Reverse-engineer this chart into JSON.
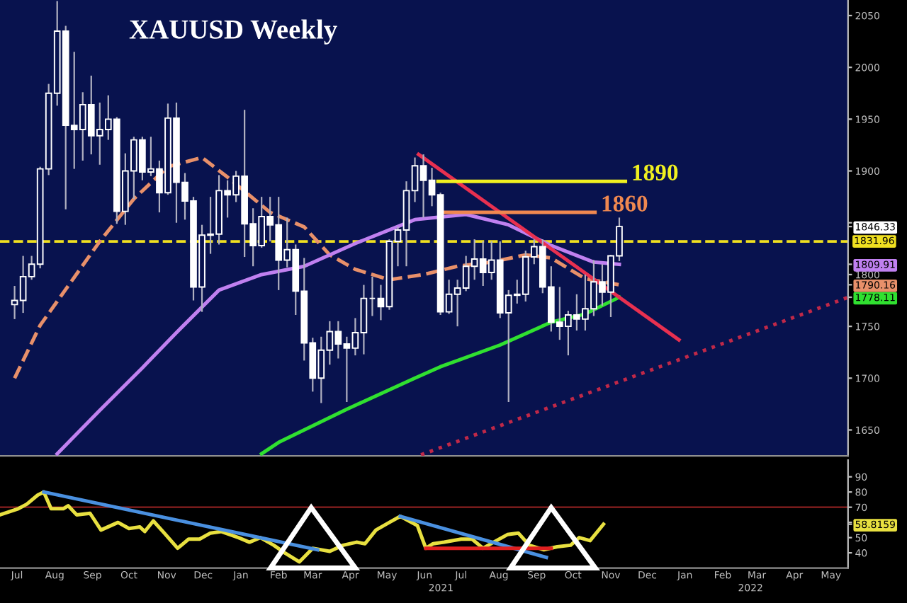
{
  "chart_data": [
    {
      "type": "candlestick",
      "title": "XAUUSD Weekly",
      "color": "#ffffff",
      "tick_labels": "y",
      "x": [
        "2020-06-29",
        "2020-07-06",
        "2020-07-13",
        "2020-07-20",
        "2020-07-27",
        "2020-08-03",
        "2020-08-10",
        "2020-08-17",
        "2020-08-24",
        "2020-08-31",
        "2020-09-07",
        "2020-09-14",
        "2020-09-21",
        "2020-09-28",
        "2020-10-05",
        "2020-10-12",
        "2020-10-19",
        "2020-10-26",
        "2020-11-02",
        "2020-11-09",
        "2020-11-16",
        "2020-11-23",
        "2020-11-30",
        "2020-12-07",
        "2020-12-14",
        "2020-12-21",
        "2020-12-28",
        "2021-01-04",
        "2021-01-11",
        "2021-01-18",
        "2021-01-25",
        "2021-02-01",
        "2021-02-08",
        "2021-02-15",
        "2021-02-22",
        "2021-03-01",
        "2021-03-08",
        "2021-03-15",
        "2021-03-22",
        "2021-03-29",
        "2021-04-05",
        "2021-04-12",
        "2021-04-19",
        "2021-04-26",
        "2021-05-03",
        "2021-05-10",
        "2021-05-17",
        "2021-05-24",
        "2021-05-31",
        "2021-06-07",
        "2021-06-14",
        "2021-06-21",
        "2021-06-28",
        "2021-07-05",
        "2021-07-12",
        "2021-07-19",
        "2021-07-26",
        "2021-08-02",
        "2021-08-09",
        "2021-08-16",
        "2021-08-23",
        "2021-08-30",
        "2021-09-06",
        "2021-09-13",
        "2021-09-20",
        "2021-09-27",
        "2021-10-04",
        "2021-10-11",
        "2021-10-18",
        "2021-10-25",
        "2021-11-01",
        "2021-11-08"
      ],
      "ohlc": [
        [
          1771,
          1789,
          1757,
          1775
        ],
        [
          1775,
          1818,
          1763,
          1798
        ],
        [
          1798,
          1818,
          1795,
          1810
        ],
        [
          1810,
          1904,
          1806,
          1902
        ],
        [
          1902,
          1984,
          1896,
          1975
        ],
        [
          1975,
          2064,
          1963,
          2035
        ],
        [
          2035,
          2040,
          1863,
          1944
        ],
        [
          1944,
          2015,
          1902,
          1940
        ],
        [
          1940,
          1976,
          1910,
          1964
        ],
        [
          1964,
          1992,
          1916,
          1934
        ],
        [
          1934,
          1966,
          1906,
          1940
        ],
        [
          1940,
          1973,
          1930,
          1950
        ],
        [
          1950,
          1952,
          1849,
          1861
        ],
        [
          1861,
          1917,
          1848,
          1900
        ],
        [
          1900,
          1933,
          1873,
          1930
        ],
        [
          1930,
          1933,
          1891,
          1899
        ],
        [
          1899,
          1933,
          1895,
          1902
        ],
        [
          1902,
          1910,
          1860,
          1879
        ],
        [
          1879,
          1965,
          1877,
          1951
        ],
        [
          1951,
          1966,
          1850,
          1889
        ],
        [
          1889,
          1898,
          1853,
          1871
        ],
        [
          1871,
          1875,
          1775,
          1788
        ],
        [
          1788,
          1848,
          1764,
          1838
        ],
        [
          1838,
          1875,
          1820,
          1839
        ],
        [
          1839,
          1896,
          1829,
          1881
        ],
        [
          1881,
          1891,
          1855,
          1877
        ],
        [
          1877,
          1900,
          1870,
          1895
        ],
        [
          1895,
          1959,
          1817,
          1849
        ],
        [
          1849,
          1864,
          1808,
          1828
        ],
        [
          1828,
          1875,
          1826,
          1856
        ],
        [
          1856,
          1875,
          1832,
          1848
        ],
        [
          1848,
          1875,
          1785,
          1814
        ],
        [
          1814,
          1855,
          1807,
          1824
        ],
        [
          1824,
          1829,
          1761,
          1784
        ],
        [
          1784,
          1816,
          1717,
          1734
        ],
        [
          1734,
          1739,
          1687,
          1700
        ],
        [
          1700,
          1740,
          1676,
          1727
        ],
        [
          1727,
          1755,
          1713,
          1745
        ],
        [
          1745,
          1755,
          1719,
          1733
        ],
        [
          1733,
          1740,
          1677,
          1729
        ],
        [
          1729,
          1758,
          1722,
          1744
        ],
        [
          1744,
          1790,
          1723,
          1777
        ],
        [
          1777,
          1798,
          1760,
          1777
        ],
        [
          1777,
          1790,
          1756,
          1769
        ],
        [
          1769,
          1834,
          1766,
          1832
        ],
        [
          1832,
          1846,
          1808,
          1843
        ],
        [
          1843,
          1890,
          1808,
          1881
        ],
        [
          1881,
          1913,
          1870,
          1905
        ],
        [
          1905,
          1916,
          1855,
          1891
        ],
        [
          1891,
          1903,
          1866,
          1877
        ],
        [
          1877,
          1879,
          1761,
          1764
        ],
        [
          1764,
          1795,
          1762,
          1781
        ],
        [
          1781,
          1795,
          1750,
          1787
        ],
        [
          1787,
          1818,
          1784,
          1808
        ],
        [
          1808,
          1834,
          1795,
          1815
        ],
        [
          1815,
          1832,
          1789,
          1802
        ],
        [
          1802,
          1832,
          1795,
          1814
        ],
        [
          1814,
          1832,
          1758,
          1763
        ],
        [
          1763,
          1785,
          1677,
          1780
        ],
        [
          1780,
          1795,
          1772,
          1781
        ],
        [
          1781,
          1823,
          1774,
          1817
        ],
        [
          1817,
          1834,
          1810,
          1827
        ],
        [
          1827,
          1834,
          1782,
          1788
        ],
        [
          1788,
          1808,
          1745,
          1754
        ],
        [
          1754,
          1788,
          1737,
          1750
        ],
        [
          1750,
          1765,
          1722,
          1761
        ],
        [
          1761,
          1781,
          1746,
          1757
        ],
        [
          1757,
          1800,
          1746,
          1767
        ],
        [
          1767,
          1814,
          1760,
          1793
        ],
        [
          1793,
          1810,
          1770,
          1783
        ],
        [
          1783,
          1819,
          1759,
          1818
        ],
        [
          1818,
          1855,
          1813,
          1846.33
        ]
      ],
      "series": [
        {
          "type": "line",
          "color": "#e8906a",
          "line_style": "dashed",
          "x": [
            "2020-06-29",
            "2020-07-20",
            "2020-09-07",
            "2020-10-05",
            "2020-11-02",
            "2020-11-30",
            "2020-12-21",
            "2021-01-25",
            "2021-02-22",
            "2021-03-15",
            "2021-04-05",
            "2021-05-03",
            "2021-05-31",
            "2021-06-28",
            "2021-07-26",
            "2021-08-23",
            "2021-09-13",
            "2021-10-11",
            "2021-11-08"
          ],
          "values": [
            1700,
            1751,
            1832,
            1873,
            1904,
            1913,
            1894,
            1860,
            1846,
            1819,
            1805,
            1795,
            1800,
            1808,
            1812,
            1819,
            1816,
            1796,
            1790.16
          ]
        },
        {
          "type": "line",
          "color": "#c080f0",
          "line_style": "solid",
          "x": [
            "2020-08-03",
            "2020-09-07",
            "2020-10-12",
            "2020-11-09",
            "2020-12-14",
            "2021-01-18",
            "2021-02-22",
            "2021-04-05",
            "2021-05-24",
            "2021-07-05",
            "2021-08-09",
            "2021-09-13",
            "2021-10-18",
            "2021-11-08"
          ],
          "values": [
            1627,
            1669,
            1710,
            1744,
            1785,
            1800,
            1808,
            1830,
            1853,
            1858,
            1848,
            1828,
            1812,
            1809.91
          ]
        },
        {
          "type": "line",
          "color": "#30e030",
          "line_style": "solid",
          "x": [
            "2021-01-18",
            "2021-02-01",
            "2021-03-29",
            "2021-05-24",
            "2021-06-14",
            "2021-08-02",
            "2021-09-13",
            "2021-10-11",
            "2021-11-08"
          ],
          "values": [
            1627,
            1638,
            1670,
            1700,
            1711,
            1732,
            1754,
            1762,
            1778.11
          ]
        },
        {
          "type": "line",
          "color": "#e83050",
          "line_style": "solid",
          "x": [
            "2021-05-27",
            "2021-12-27"
          ],
          "values": [
            1916,
            1737
          ]
        },
        {
          "type": "line",
          "color": "#c02848",
          "line_style": "dotted",
          "x": [
            "2021-05-29",
            "2022-05-15"
          ],
          "values": [
            1626,
            1778
          ]
        },
        {
          "type": "line",
          "name": "1890",
          "color": "#f0f020",
          "line_style": "solid",
          "x": [
            "2021-06-12",
            "2021-11-13"
          ],
          "values": [
            1890,
            1890
          ]
        },
        {
          "type": "line",
          "name": "1860",
          "color": "#f08850",
          "line_style": "solid",
          "x": [
            "2021-06-14",
            "2021-10-19"
          ],
          "values": [
            1860,
            1860
          ]
        }
      ],
      "ref_lines": [
        {
          "axis": "y",
          "value": 1831.96,
          "label": "1831.96",
          "color": "#f0e020",
          "line_style": "dashed"
        }
      ],
      "xlim": [
        "2020-06-17",
        "2022-05-15"
      ],
      "ylim": [
        1625,
        2065
      ],
      "yticks": [
        1650,
        1700,
        1750,
        1778.11,
        1790.16,
        1800,
        1809.91,
        1846.33,
        {
          "value": 1850,
          "label": null
        },
        1900,
        1950,
        2000,
        2050
      ]
    },
    {
      "type": "line",
      "annotations": [
        "2021",
        "2022"
      ],
      "series": [
        {
          "type": "line",
          "color": "#e8e040",
          "line_style": "solid",
          "x": [
            "2020-06-17",
            "2020-07-02",
            "2020-07-09",
            "2020-07-18",
            "2020-07-23",
            "2020-07-29",
            "2020-08-08",
            "2020-08-12",
            "2020-08-19",
            "2020-08-30",
            "2020-09-08",
            "2020-09-22",
            "2020-10-01",
            "2020-10-10",
            "2020-10-14",
            "2020-10-21",
            "2020-10-30",
            "2020-11-10",
            "2020-11-19",
            "2020-11-28",
            "2020-12-07",
            "2020-12-16",
            "2020-12-30",
            "2021-01-08",
            "2021-01-17",
            "2021-01-28",
            "2021-02-06",
            "2021-02-18",
            "2021-03-01",
            "2021-03-15",
            "2021-03-26",
            "2021-04-06",
            "2021-04-13",
            "2021-04-22",
            "2021-05-03",
            "2021-05-12",
            "2021-05-26",
            "2021-06-02",
            "2021-06-08",
            "2021-06-17",
            "2021-07-01",
            "2021-07-10",
            "2021-07-19",
            "2021-07-30",
            "2021-08-08",
            "2021-08-17",
            "2021-08-26",
            "2021-09-07",
            "2021-09-18",
            "2021-09-29",
            "2021-10-06",
            "2021-10-15",
            "2021-10-26"
          ],
          "values": [
            65,
            69,
            72,
            78,
            80,
            69,
            69,
            71,
            65,
            66,
            55,
            60,
            56,
            57,
            54,
            61,
            53,
            43,
            49,
            49,
            53,
            54,
            50,
            47,
            50,
            45,
            40,
            34,
            43,
            41,
            45,
            47,
            46,
            55,
            60,
            64,
            58,
            43,
            46,
            47,
            49,
            49,
            43,
            48,
            52,
            53,
            45,
            42,
            44,
            45,
            50,
            48,
            58.8159
          ]
        },
        {
          "type": "line",
          "color": "#4a90e0",
          "line_style": "solid",
          "x": [
            "2020-07-23",
            "2021-03-05"
          ],
          "values": [
            80,
            42
          ]
        },
        {
          "type": "line",
          "color": "#4a90e0",
          "line_style": "solid",
          "x": [
            "2021-05-12",
            "2021-09-09"
          ],
          "values": [
            64,
            37
          ]
        },
        {
          "type": "line",
          "color": "#e02020",
          "line_style": "solid",
          "x": [
            "2021-06-02",
            "2021-09-13"
          ],
          "values": [
            43,
            43
          ]
        }
      ],
      "ref_lines": [
        {
          "axis": "y",
          "value": 70,
          "color": "#8b2020",
          "line_style": "solid"
        }
      ],
      "xlim": [
        "2020-06-17",
        "2022-05-15"
      ],
      "ylim": [
        30,
        101
      ],
      "xticks": [
        {
          "value": "2020-07-01",
          "label": "Jul"
        },
        {
          "value": "2020-08-01",
          "label": "Aug"
        },
        {
          "value": "2020-09-01",
          "label": "Sep"
        },
        {
          "value": "2020-10-01",
          "label": "Oct"
        },
        {
          "value": "2020-11-01",
          "label": "Nov"
        },
        {
          "value": "2020-12-01",
          "label": "Dec"
        },
        {
          "value": "2021-01-01",
          "label": "Jan"
        },
        {
          "value": "2021-02-01",
          "label": "Feb"
        },
        {
          "value": "2021-03-01",
          "label": "Mar"
        },
        {
          "value": "2021-04-01",
          "label": "Apr"
        },
        {
          "value": "2021-05-01",
          "label": "May"
        },
        {
          "value": "2021-06-01",
          "label": "Jun"
        },
        {
          "value": "2021-07-01",
          "label": "Jul"
        },
        {
          "value": "2021-08-01",
          "label": "Aug"
        },
        {
          "value": "2021-09-01",
          "label": "Sep"
        },
        {
          "value": "2021-10-01",
          "label": "Oct"
        },
        {
          "value": "2021-11-01",
          "label": "Nov"
        },
        {
          "value": "2021-12-01",
          "label": "Dec"
        },
        {
          "value": "2022-01-01",
          "label": "Jan"
        },
        {
          "value": "2022-02-01",
          "label": "Feb"
        },
        {
          "value": "2022-03-01",
          "label": "Mar"
        },
        {
          "value": "2022-04-01",
          "label": "Apr"
        },
        {
          "value": "2022-05-01",
          "label": "May"
        }
      ],
      "yticks": [
        40,
        50,
        58.8159,
        {
          "value": 60,
          "label": null
        },
        70,
        80,
        90
      ]
    }
  ]
}
